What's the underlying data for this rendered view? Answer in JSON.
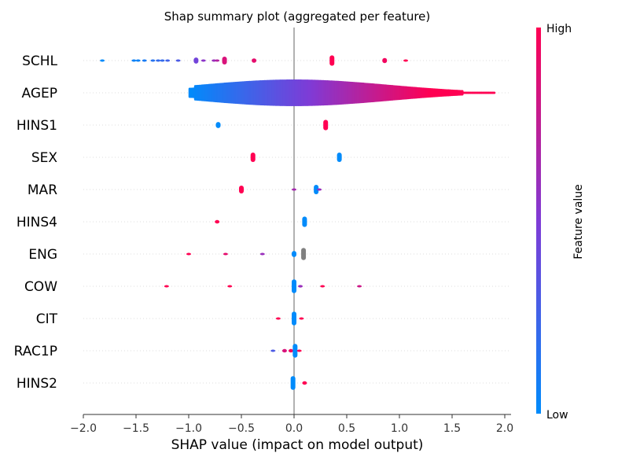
{
  "chart_data": {
    "type": "scatter",
    "title": "Shap summary plot (aggregated per feature)",
    "xlabel": "SHAP value (impact on model output)",
    "ylabel": "",
    "xlim": [
      -2.0,
      2.0
    ],
    "xticks": [
      "−2.0",
      "−1.5",
      "−1.0",
      "−0.5",
      "0.0",
      "0.5",
      "1.0",
      "1.5",
      "2.0"
    ],
    "xtick_values": [
      -2.0,
      -1.5,
      -1.0,
      -0.5,
      0.0,
      0.5,
      1.0,
      1.5,
      2.0
    ],
    "colorbar": {
      "label": "Feature value",
      "high": "High",
      "low": "Low",
      "low_color": "#008bfb",
      "mid_color": "#7f3bd6",
      "high_color": "#ff0052"
    },
    "zero_line": true,
    "features": [
      {
        "name": "SCHL",
        "clusters": [
          {
            "x": -1.82,
            "v": 0.0,
            "w": 0.01
          },
          {
            "x": -1.52,
            "v": 0.05,
            "w": 0.01
          },
          {
            "x": -1.48,
            "v": 0.05,
            "w": 0.02
          },
          {
            "x": -1.42,
            "v": 0.1,
            "w": 0.01
          },
          {
            "x": -1.34,
            "v": 0.15,
            "w": 0.02
          },
          {
            "x": -1.29,
            "v": 0.2,
            "w": 0.02
          },
          {
            "x": -1.25,
            "v": 0.2,
            "w": 0.02
          },
          {
            "x": -1.2,
            "v": 0.25,
            "w": 0.03
          },
          {
            "x": -1.1,
            "v": 0.3,
            "w": 0.01
          },
          {
            "x": -0.93,
            "v": 0.45,
            "w": 0.35
          },
          {
            "x": -0.86,
            "v": 0.55,
            "w": 0.01
          },
          {
            "x": -0.76,
            "v": 0.6,
            "w": 0.1
          },
          {
            "x": -0.73,
            "v": 0.7,
            "w": 0.08
          },
          {
            "x": -0.66,
            "v": 0.85,
            "w": 0.45
          },
          {
            "x": -0.38,
            "v": 0.9,
            "w": 0.25
          },
          {
            "x": 0.36,
            "v": 1.0,
            "w": 0.6
          },
          {
            "x": 0.86,
            "v": 0.95,
            "w": 0.3
          },
          {
            "x": 1.06,
            "v": 1.0,
            "w": 0.12
          }
        ]
      },
      {
        "name": "AGEP",
        "type": "dense",
        "xmin": -0.99,
        "xmax": 1.9
      },
      {
        "name": "HINS1",
        "clusters": [
          {
            "x": -0.72,
            "v": 0.0,
            "w": 0.35
          },
          {
            "x": 0.3,
            "v": 1.0,
            "w": 0.6
          }
        ]
      },
      {
        "name": "SEX",
        "clusters": [
          {
            "x": -0.39,
            "v": 1.0,
            "w": 0.55
          },
          {
            "x": 0.43,
            "v": 0.0,
            "w": 0.55
          }
        ]
      },
      {
        "name": "MAR",
        "clusters": [
          {
            "x": -0.5,
            "v": 1.0,
            "w": 0.45
          },
          {
            "x": 0.0,
            "v": 0.65,
            "w": 0.03
          },
          {
            "x": 0.21,
            "v": 0.0,
            "w": 0.55
          },
          {
            "x": 0.24,
            "v": 0.6,
            "w": 0.12
          }
        ]
      },
      {
        "name": "HINS4",
        "clusters": [
          {
            "x": -0.73,
            "v": 1.0,
            "w": 0.2
          },
          {
            "x": 0.1,
            "v": 0.0,
            "w": 0.6
          }
        ]
      },
      {
        "name": "ENG",
        "clusters": [
          {
            "x": -1.0,
            "v": 1.0,
            "w": 0.01
          },
          {
            "x": -0.65,
            "v": 0.9,
            "w": 0.02
          },
          {
            "x": -0.3,
            "v": 0.6,
            "w": 0.02
          },
          {
            "x": 0.0,
            "v": 0.0,
            "w": 0.35
          },
          {
            "x": 0.09,
            "v": -1,
            "w": 0.7
          }
        ]
      },
      {
        "name": "COW",
        "clusters": [
          {
            "x": -1.21,
            "v": 1.0,
            "w": 0.01
          },
          {
            "x": -0.61,
            "v": 1.0,
            "w": 0.02
          },
          {
            "x": 0.0,
            "v": 0.0,
            "w": 0.8
          },
          {
            "x": 0.06,
            "v": 0.6,
            "w": 0.15
          },
          {
            "x": 0.27,
            "v": 1.0,
            "w": 0.02
          },
          {
            "x": 0.62,
            "v": 0.8,
            "w": 0.02
          }
        ]
      },
      {
        "name": "CIT",
        "clusters": [
          {
            "x": -0.15,
            "v": 1.0,
            "w": 0.1
          },
          {
            "x": 0.0,
            "v": 0.0,
            "w": 0.8
          },
          {
            "x": 0.07,
            "v": 1.0,
            "w": 0.1
          }
        ]
      },
      {
        "name": "RAC1P",
        "clusters": [
          {
            "x": -0.2,
            "v": 0.3,
            "w": 0.03
          },
          {
            "x": -0.09,
            "v": 0.85,
            "w": 0.2
          },
          {
            "x": -0.03,
            "v": 0.95,
            "w": 0.2
          },
          {
            "x": 0.01,
            "v": 0.0,
            "w": 0.8
          },
          {
            "x": 0.05,
            "v": 1.0,
            "w": 0.03
          }
        ]
      },
      {
        "name": "HINS2",
        "clusters": [
          {
            "x": -0.01,
            "v": 0.0,
            "w": 0.8
          },
          {
            "x": 0.1,
            "v": 1.0,
            "w": 0.2
          }
        ]
      }
    ]
  }
}
